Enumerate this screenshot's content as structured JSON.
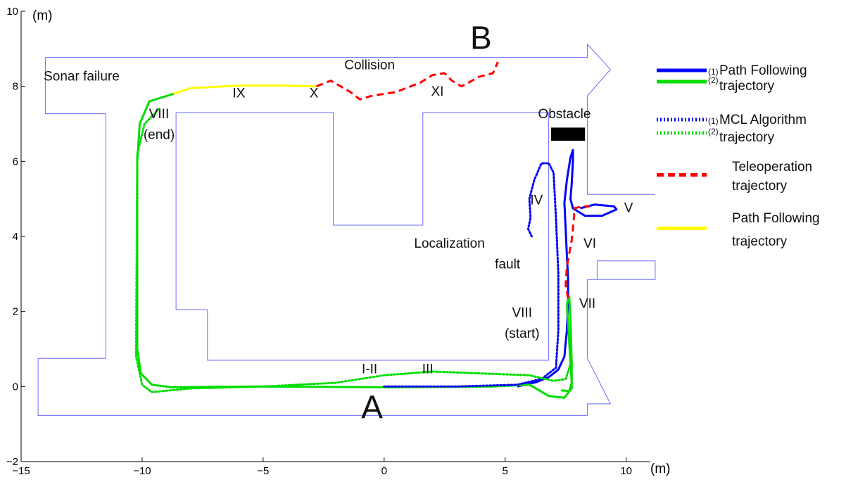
{
  "chart_data": {
    "type": "line",
    "title": "",
    "xlabel": "(m)",
    "ylabel": "(m)",
    "xlim": [
      -15,
      11
    ],
    "ylim": [
      -2,
      10
    ],
    "x_ticks": [
      -15,
      -10,
      -5,
      0,
      5,
      10
    ],
    "y_ticks": [
      -2,
      0,
      2,
      4,
      6,
      8,
      10
    ],
    "x_tick_labels": [
      "−15",
      "−10",
      "−5",
      "0",
      "5",
      "10"
    ],
    "y_tick_labels": [
      "−2",
      "0",
      "2",
      "4",
      "6",
      "8",
      "10"
    ],
    "grid": false,
    "legend_position": "right",
    "floor_plan": {
      "color": "#6b6bff",
      "outline": [
        [
          -14.0,
          8.77
        ],
        [
          8.4,
          8.77
        ],
        [
          8.4,
          9.12
        ],
        [
          9.35,
          8.45
        ],
        [
          8.4,
          7.75
        ],
        [
          8.4,
          7.75
        ],
        [
          8.4,
          5.12
        ],
        [
          11.2,
          5.12
        ]
      ],
      "outer_loop": [
        [
          -14.0,
          8.77
        ],
        [
          -14.0,
          7.27
        ],
        [
          -11.5,
          7.27
        ],
        [
          -11.5,
          0.75
        ],
        [
          -14.3,
          0.75
        ],
        [
          -14.3,
          -0.77
        ],
        [
          8.4,
          -0.77
        ],
        [
          8.4,
          -0.46
        ],
        [
          9.35,
          -0.46
        ],
        [
          8.4,
          0.75
        ],
        [
          8.4,
          0.75
        ],
        [
          8.4,
          2.85
        ]
      ],
      "inner_block": [
        [
          -8.6,
          7.3
        ],
        [
          -2.1,
          7.3
        ],
        [
          -2.1,
          4.3
        ],
        [
          1.6,
          4.3
        ],
        [
          1.6,
          7.3
        ],
        [
          6.8,
          7.3
        ],
        [
          6.8,
          0.7
        ],
        [
          -7.3,
          0.7
        ],
        [
          -7.3,
          2.05
        ],
        [
          -8.6,
          2.05
        ],
        [
          -8.6,
          6.05
        ],
        [
          -8.6,
          7.3
        ]
      ],
      "right_stub": [
        [
          8.4,
          2.85
        ],
        [
          11.2,
          2.85
        ],
        [
          11.2,
          3.35
        ],
        [
          8.8,
          3.35
        ],
        [
          8.8,
          2.85
        ]
      ]
    },
    "obstacle": {
      "label": "Obstacle",
      "x": [
        6.9,
        8.3
      ],
      "y": [
        6.55,
        6.9
      ],
      "color": "#000000"
    },
    "series": [
      {
        "name": "(1) Path Following trajectory",
        "style": "solid",
        "color": "#0000ff",
        "x": [
          5.5,
          6.3,
          6.8,
          7.2,
          7.45,
          7.55,
          7.6,
          7.6,
          7.55,
          7.5,
          7.45,
          7.55,
          7.7,
          7.8,
          7.8,
          7.75,
          7.7,
          7.8,
          8.3,
          9.0,
          9.6,
          9.5,
          8.7,
          8.1
        ],
        "y": [
          0.0,
          0.12,
          0.25,
          0.45,
          0.8,
          1.5,
          2.2,
          2.9,
          3.5,
          4.2,
          4.9,
          5.5,
          6.1,
          6.3,
          6.0,
          5.4,
          5.0,
          4.75,
          4.55,
          4.55,
          4.72,
          4.8,
          4.85,
          4.75
        ]
      },
      {
        "name": "(2) Path Following trajectory",
        "style": "solid",
        "color": "#00dd00",
        "x": [
          -8.7,
          -9.7,
          -10.1,
          -10.2,
          -10.2,
          -10.05,
          -9.6,
          -8.8,
          -5.0,
          0.0,
          4.5,
          6.0,
          6.8,
          7.45,
          7.75,
          7.75,
          7.7,
          7.65,
          7.55,
          7.75,
          7.65,
          7.3
        ],
        "y": [
          7.8,
          7.6,
          7.0,
          6.0,
          1.0,
          0.35,
          0.05,
          -0.02,
          0.0,
          -0.02,
          0.0,
          0.05,
          -0.25,
          -0.3,
          -0.05,
          0.6,
          1.8,
          2.4,
          2.2,
          0.1,
          -0.12,
          -0.1
        ]
      },
      {
        "name": "(1) MCL Algorithm trajectory",
        "style": "dotted",
        "color": "#0000ff",
        "x": [
          0.0,
          3.0,
          5.5,
          6.5,
          7.1,
          7.2,
          7.2,
          7.1,
          7.0,
          6.8,
          6.5,
          6.2,
          6.0,
          6.05,
          5.95,
          6.1
        ],
        "y": [
          0.0,
          0.0,
          0.05,
          0.2,
          0.5,
          1.5,
          3.0,
          4.5,
          5.7,
          5.95,
          5.95,
          5.5,
          5.0,
          4.5,
          4.2,
          4.0
        ]
      },
      {
        "name": "(2) MCL Algorithm trajectory",
        "style": "dotted",
        "color": "#00dd00",
        "x": [
          -9.3,
          -9.9,
          -10.2,
          -10.25,
          -10.0,
          -9.6,
          -8.0,
          -5.0,
          -2.0,
          0.0,
          2.0,
          4.0,
          6.0,
          7.0,
          7.5,
          7.7
        ],
        "y": [
          7.4,
          7.0,
          6.2,
          0.8,
          0.05,
          -0.15,
          -0.05,
          0.0,
          0.1,
          0.3,
          0.4,
          0.35,
          0.3,
          0.15,
          0.2,
          0.6
        ]
      },
      {
        "name": "Teleoperation trajectory",
        "style": "dashed",
        "color": "#ff0000",
        "x": [
          7.6,
          7.5,
          7.55,
          7.75,
          7.8,
          7.85,
          7.85,
          8.2,
          8.5
        ],
        "y": [
          2.35,
          2.7,
          3.2,
          3.9,
          4.2,
          4.55,
          4.75,
          4.8,
          4.8
        ]
      },
      {
        "name": "Teleoperation trajectory (XI)",
        "style": "dashed",
        "color": "#ff0000",
        "x": [
          -2.8,
          -2.2,
          -1.8,
          -1.4,
          -1.0,
          -0.5,
          0.5,
          1.5,
          2.0,
          2.5,
          2.8,
          3.2,
          3.5,
          3.9,
          4.5,
          4.6,
          4.7
        ],
        "y": [
          8.0,
          8.15,
          8.0,
          7.85,
          7.65,
          7.75,
          7.85,
          8.1,
          8.3,
          8.35,
          8.15,
          8.0,
          8.1,
          8.25,
          8.35,
          8.5,
          8.65
        ]
      },
      {
        "name": "Path Following trajectory",
        "style": "solid",
        "color": "#ffff00",
        "x": [
          -8.7,
          -8.0,
          -6.0,
          -4.0,
          -2.8
        ],
        "y": [
          7.8,
          7.95,
          8.02,
          8.02,
          8.0
        ]
      }
    ],
    "annotations": [
      {
        "text": "Sonar failure",
        "x": -12.5,
        "y": 8.15
      },
      {
        "text": "Collision",
        "x": -0.6,
        "y": 8.45
      },
      {
        "text": "IX",
        "x": -6.0,
        "y": 7.7
      },
      {
        "text": "X",
        "x": -2.9,
        "y": 7.7
      },
      {
        "text": "XI",
        "x": 2.2,
        "y": 7.75
      },
      {
        "text": "VIII",
        "x": -9.3,
        "y": 7.15
      },
      {
        "text": "(end)",
        "x": -9.3,
        "y": 6.6
      },
      {
        "text": "Obstacle",
        "x": 7.45,
        "y": 7.15
      },
      {
        "text": "IV",
        "x": 6.3,
        "y": 4.85
      },
      {
        "text": "V",
        "x": 10.1,
        "y": 4.65
      },
      {
        "text": "VI",
        "x": 8.5,
        "y": 3.7
      },
      {
        "text": "VII",
        "x": 8.4,
        "y": 2.1
      },
      {
        "text": "Localization",
        "x": 2.7,
        "y": 3.7
      },
      {
        "text": "fault",
        "x": 5.1,
        "y": 3.15
      },
      {
        "text": "VIII",
        "x": 5.7,
        "y": 1.85
      },
      {
        "text": "(start)",
        "x": 5.7,
        "y": 1.3
      },
      {
        "text": "I-II",
        "x": -0.6,
        "y": 0.35
      },
      {
        "text": "III",
        "x": 1.8,
        "y": 0.35
      }
    ],
    "labels_big": [
      {
        "text": "B",
        "x": 4.0,
        "y": 9.0
      },
      {
        "text": "A",
        "x": -0.5,
        "y": -0.85
      }
    ],
    "legend": [
      {
        "style": "solid",
        "colors": [
          "#0000ff",
          "#00dd00"
        ],
        "sub": [
          "(1)",
          "(2)"
        ],
        "lines": [
          "Path Following",
          "trajectory"
        ]
      },
      {
        "style": "dotted",
        "colors": [
          "#0000ff",
          "#00dd00"
        ],
        "sub": [
          "(1)",
          "(2)"
        ],
        "lines": [
          "MCL Algorithm",
          "trajectory"
        ]
      },
      {
        "style": "dashed",
        "colors": [
          "#ff0000"
        ],
        "sub": [],
        "lines": [
          "Teleoperation",
          "trajectory"
        ]
      },
      {
        "style": "solid",
        "colors": [
          "#ffff00"
        ],
        "sub": [],
        "lines": [
          "Path Following",
          "trajectory"
        ]
      }
    ]
  }
}
